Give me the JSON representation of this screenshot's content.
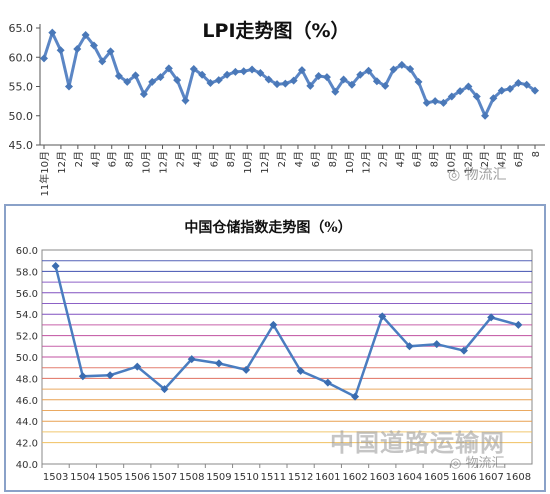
{
  "chart_data": [
    {
      "type": "line",
      "title": "LPI走势图（%）",
      "xlabel": "",
      "ylabel": "",
      "ylim": [
        45.0,
        65.0
      ],
      "yticks": [
        "45.0",
        "50.0",
        "55.0",
        "60.0",
        "65.0"
      ],
      "xtick_labels": [
        "11年10月",
        "12月",
        "2月",
        "4月",
        "6月",
        "8月",
        "10月",
        "12月",
        "2月",
        "4月",
        "6月",
        "8月",
        "10月",
        "12月",
        "2月",
        "4月",
        "6月",
        "8月",
        "10月",
        "12月",
        "2月",
        "4月",
        "6月",
        "8月",
        "10月",
        "12月",
        "2月",
        "4月",
        "6月",
        "8"
      ],
      "values": [
        59.8,
        64.2,
        61.2,
        55.0,
        61.4,
        63.8,
        62.0,
        59.3,
        61.0,
        56.8,
        55.8,
        56.9,
        53.7,
        55.8,
        56.6,
        58.1,
        56.1,
        52.6,
        58.0,
        57.0,
        55.6,
        56.1,
        57.0,
        57.5,
        57.6,
        57.9,
        57.3,
        56.2,
        55.4,
        55.5,
        56.0,
        57.8,
        55.1,
        56.8,
        56.6,
        54.1,
        56.2,
        55.3,
        57.0,
        57.7,
        55.9,
        55.1,
        57.9,
        58.7,
        58.0,
        55.8,
        52.2,
        52.5,
        52.2,
        53.3,
        54.2,
        55.0,
        53.3,
        50.0,
        53.0,
        54.3,
        54.6,
        55.6,
        55.3,
        54.3
      ],
      "grid": false,
      "legend": "none",
      "colors": {
        "line": "#5b86c5",
        "marker": "#4a78b8",
        "axis": "#555555"
      }
    },
    {
      "type": "line",
      "title": "中国仓储指数走势图（%）",
      "xlabel": "",
      "ylabel": "",
      "ylim": [
        40.0,
        60.0
      ],
      "yticks": [
        "40.0",
        "42.0",
        "44.0",
        "46.0",
        "48.0",
        "50.0",
        "52.0",
        "54.0",
        "56.0",
        "58.0",
        "60.0"
      ],
      "categories": [
        "1503",
        "1504",
        "1505",
        "1506",
        "1507",
        "1508",
        "1509",
        "1510",
        "1511",
        "1512",
        "1601",
        "1602",
        "1603",
        "1604",
        "1605",
        "1606",
        "1607",
        "1608"
      ],
      "values": [
        58.5,
        48.2,
        48.3,
        49.1,
        47.0,
        49.8,
        49.4,
        48.8,
        53.0,
        48.7,
        47.6,
        46.3,
        53.8,
        51.0,
        51.2,
        50.6,
        53.7,
        53.0
      ],
      "grid": true,
      "legend": "none",
      "colors": {
        "line": "#4a7dc0",
        "marker": "#3a6cb0",
        "gridlines": [
          "#f0c060",
          "#e8a050",
          "#e07060",
          "#c050a0",
          "#8050c0",
          "#4050b0"
        ]
      }
    }
  ],
  "watermarks": {
    "top_right": "物流汇",
    "bottom_big": "中国道路运输网",
    "bottom_small": "物流汇"
  }
}
